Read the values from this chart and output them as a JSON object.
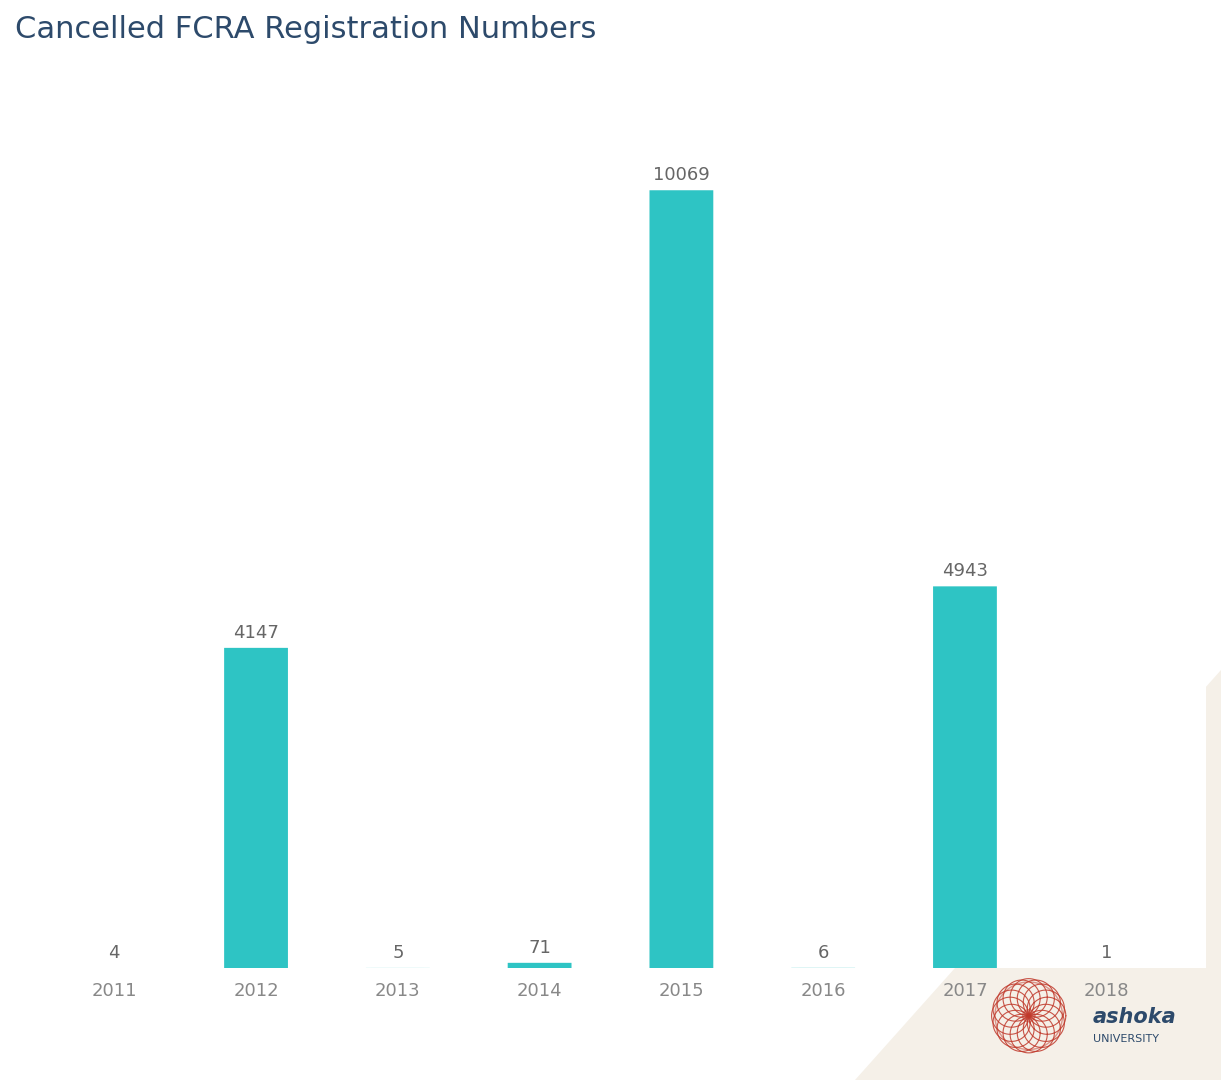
{
  "title": "Cancelled FCRA Registration Numbers",
  "title_color": "#2d4a6b",
  "title_fontsize": 22,
  "categories": [
    "2011",
    "2012",
    "2013",
    "2014",
    "2015",
    "2016",
    "2017",
    "2018"
  ],
  "values": [
    4,
    4147,
    5,
    71,
    10069,
    6,
    4943,
    1
  ],
  "bar_color": "#2ec4c4",
  "background_color": "#ffffff",
  "label_color": "#666666",
  "label_fontsize": 13,
  "tick_fontsize": 13,
  "tick_color": "#888888",
  "bar_width": 0.45,
  "ylim": [
    0,
    11500
  ],
  "watermark_color": "#f5f0e8",
  "ashoka_text_color": "#2d4a6b",
  "ashoka_logo_color": "#c0392b"
}
